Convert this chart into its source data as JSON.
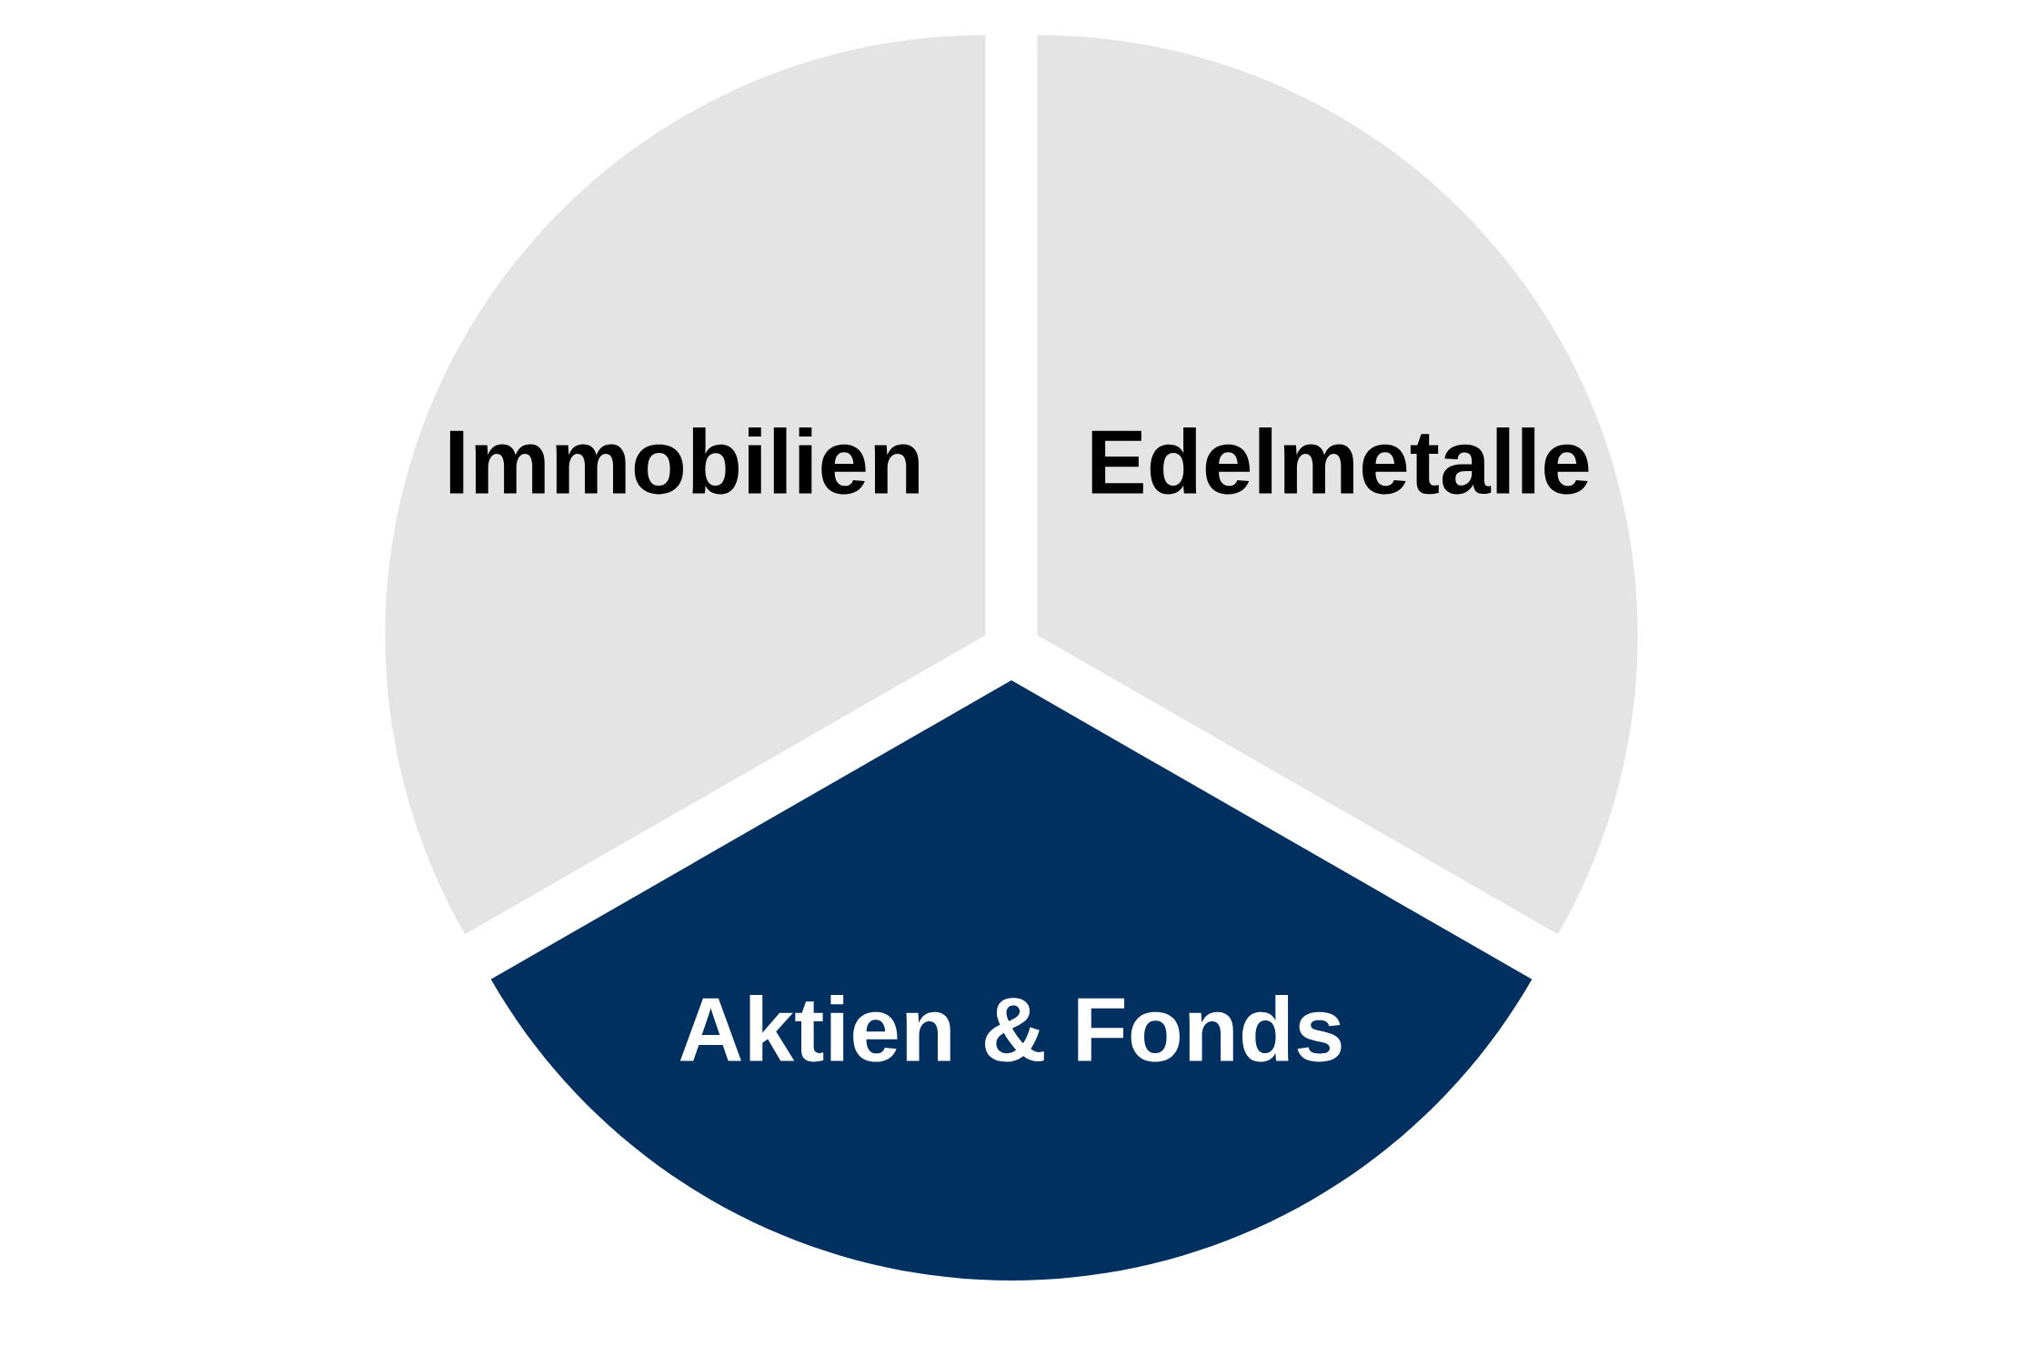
{
  "chart_data": {
    "type": "pie",
    "categories": [
      "Edelmetalle",
      "Aktien & Fonds",
      "Immobilien"
    ],
    "values": [
      33.3,
      33.4,
      33.3
    ],
    "colors": [
      "#e4e4e4",
      "#00305f",
      "#e4e4e4"
    ]
  }
}
